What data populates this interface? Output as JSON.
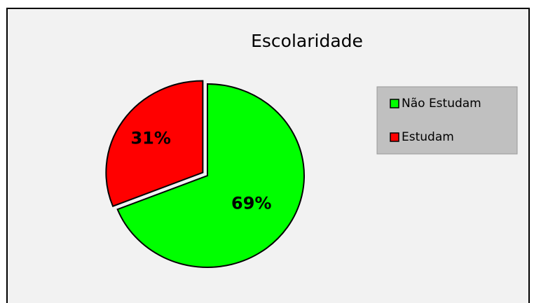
{
  "chart_data": {
    "type": "pie",
    "title": "Escolaridade",
    "categories": [
      "Não Estudam",
      "Estudam"
    ],
    "values": [
      69,
      31
    ],
    "value_labels": [
      "69%",
      "31%"
    ],
    "colors": [
      "#00ff00",
      "#ff0000"
    ],
    "legend": "right"
  }
}
